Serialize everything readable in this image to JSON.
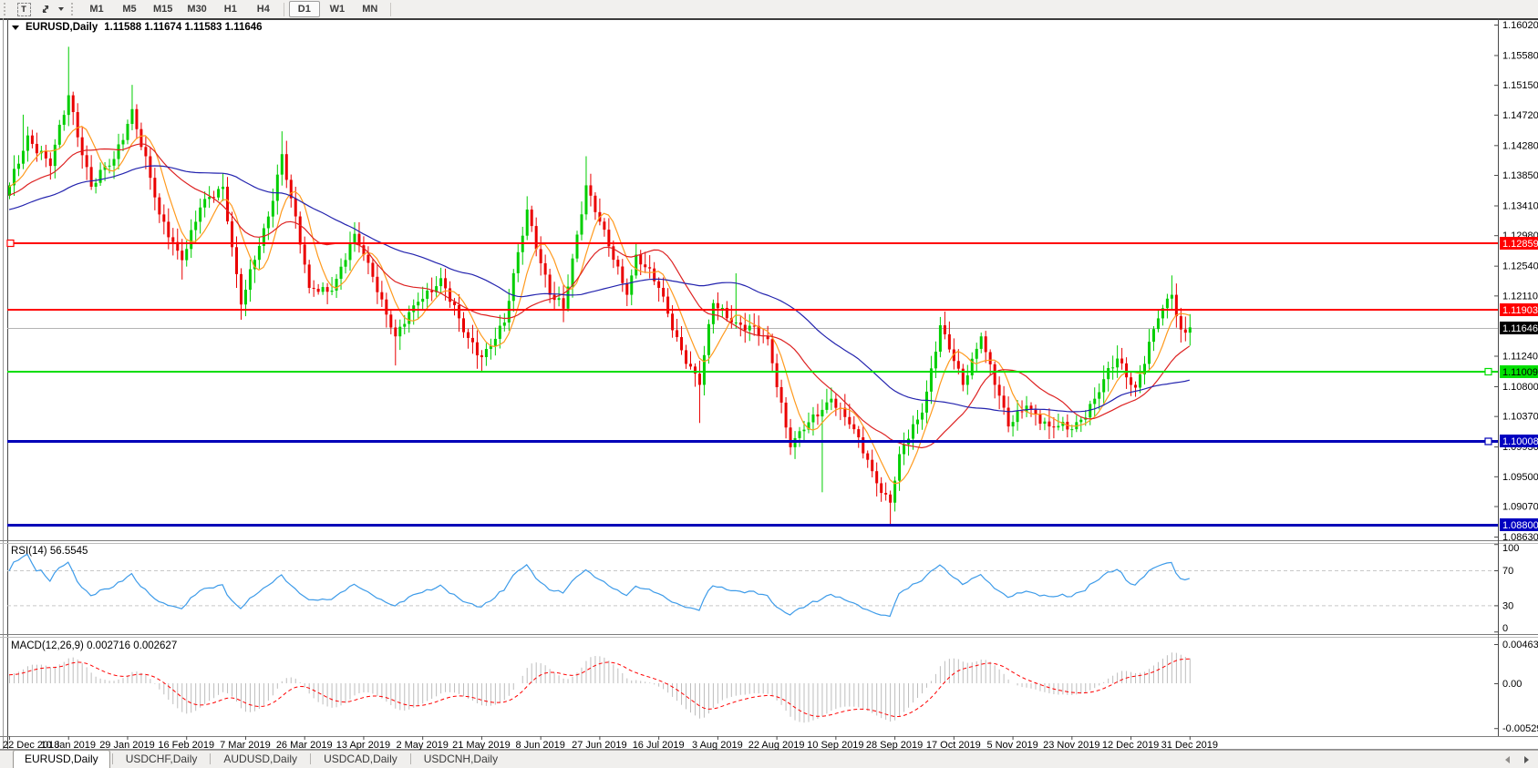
{
  "toolbar": {
    "text_tool_label": "T",
    "timeframes": [
      "M1",
      "M5",
      "M15",
      "M30",
      "H1",
      "H4",
      "D1",
      "W1",
      "MN"
    ],
    "active_timeframe": "D1"
  },
  "chart": {
    "title_symbol": "EURUSD,Daily",
    "title_ohlc": "1.11588 1.11674 1.11583 1.11646",
    "y_ticks": [
      "1.16020",
      "1.15580",
      "1.15150",
      "1.14720",
      "1.14280",
      "1.13850",
      "1.13410",
      "1.12980",
      "1.12540",
      "1.12110",
      "1.11240",
      "1.10800",
      "1.10370",
      "1.09930",
      "1.09500",
      "1.09070",
      "1.08630"
    ],
    "current_price": {
      "label": "1.11646",
      "price": 1.11646
    },
    "hlines": [
      {
        "price": 1.12859,
        "label": "1.12859",
        "color": "#ff0000",
        "width": 2,
        "handle": "left",
        "label_bg": "#ff0000",
        "label_fg": "#ffffff"
      },
      {
        "price": 1.11903,
        "label": "1.11903",
        "color": "#ff0000",
        "width": 2,
        "handle": null,
        "label_bg": "#ff0000",
        "label_fg": "#ffffff"
      },
      {
        "price": 1.11009,
        "label": "1.11009",
        "color": "#00dd00",
        "width": 2,
        "handle": "right",
        "label_bg": "#00e000",
        "label_fg": "#000000"
      },
      {
        "price": 1.10008,
        "label": "1.10008",
        "color": "#0000b8",
        "width": 3,
        "handle": "right",
        "label_bg": "#0000c0",
        "label_fg": "#ffffff"
      },
      {
        "price": 1.088,
        "label": "1.08800",
        "color": "#0000b8",
        "width": 3,
        "handle": null,
        "label_bg": "#0000c0",
        "label_fg": "#ffffff"
      }
    ],
    "colors": {
      "bull": "#00ce00",
      "bear": "#ea0000",
      "ma_fast": "#ff9a1e",
      "ma_medium": "#dd2222",
      "ma_slow": "#2323ae",
      "rsi_line": "#3d9be9",
      "macd_hist": "#bdbdbd",
      "macd_signal": "#ff0000",
      "current_price_line": "#b4b4b4",
      "axis_text": "#000000"
    }
  },
  "chart_data": {
    "type": "candlestick",
    "symbol": "EURUSD",
    "timeframe": "Daily",
    "bar_count": 261,
    "y_range": [
      1.0863,
      1.1602
    ],
    "x_date_labels": [
      "22 Dec 2018",
      "10 Jan 2019",
      "29 Jan 2019",
      "16 Feb 2019",
      "7 Mar 2019",
      "26 Mar 2019",
      "13 Apr 2019",
      "2 May 2019",
      "21 May 2019",
      "8 Jun 2019",
      "27 Jun 2019",
      "16 Jul 2019",
      "3 Aug 2019",
      "22 Aug 2019",
      "10 Sep 2019",
      "28 Sep 2019",
      "17 Oct 2019",
      "5 Nov 2019",
      "23 Nov 2019",
      "12 Dec 2019",
      "31 Dec 2019"
    ],
    "bars_per_label": 13,
    "close_anchors": [
      [
        0,
        1.137
      ],
      [
        4,
        1.1442
      ],
      [
        9,
        1.1398
      ],
      [
        13,
        1.15
      ],
      [
        18,
        1.1368
      ],
      [
        23,
        1.1408
      ],
      [
        27,
        1.148
      ],
      [
        33,
        1.1328
      ],
      [
        38,
        1.1262
      ],
      [
        42,
        1.1338
      ],
      [
        47,
        1.1368
      ],
      [
        51,
        1.1198
      ],
      [
        57,
        1.1325
      ],
      [
        60,
        1.1415
      ],
      [
        66,
        1.1222
      ],
      [
        71,
        1.1218
      ],
      [
        76,
        1.13
      ],
      [
        80,
        1.1238
      ],
      [
        85,
        1.1152
      ],
      [
        90,
        1.1202
      ],
      [
        95,
        1.1236
      ],
      [
        100,
        1.1158
      ],
      [
        104,
        1.1122
      ],
      [
        109,
        1.1172
      ],
      [
        114,
        1.1335
      ],
      [
        119,
        1.1212
      ],
      [
        122,
        1.1192
      ],
      [
        127,
        1.137
      ],
      [
        132,
        1.1282
      ],
      [
        136,
        1.1212
      ],
      [
        138,
        1.127
      ],
      [
        143,
        1.1222
      ],
      [
        148,
        1.1132
      ],
      [
        152,
        1.1082
      ],
      [
        155,
        1.12
      ],
      [
        160,
        1.1172
      ],
      [
        167,
        1.1148
      ],
      [
        172,
        1.0992
      ],
      [
        176,
        1.1028
      ],
      [
        181,
        1.1062
      ],
      [
        186,
        1.1018
      ],
      [
        191,
        1.094
      ],
      [
        194,
        1.0912
      ],
      [
        196,
        1.0982
      ],
      [
        201,
        1.1042
      ],
      [
        205,
        1.1168
      ],
      [
        210,
        1.1082
      ],
      [
        214,
        1.1152
      ],
      [
        220,
        1.1022
      ],
      [
        224,
        1.1052
      ],
      [
        229,
        1.1022
      ],
      [
        234,
        1.1018
      ],
      [
        239,
        1.1062
      ],
      [
        244,
        1.112
      ],
      [
        248,
        1.1078
      ],
      [
        253,
        1.1178
      ],
      [
        256,
        1.1212
      ],
      [
        258,
        1.1162
      ],
      [
        260,
        1.1165
      ]
    ],
    "wick_extremes": [
      {
        "bar": 3,
        "high": 1.1472
      },
      {
        "bar": 13,
        "high": 1.157
      },
      {
        "bar": 27,
        "high": 1.1515
      },
      {
        "bar": 38,
        "low": 1.1234
      },
      {
        "bar": 51,
        "low": 1.1176
      },
      {
        "bar": 60,
        "high": 1.1448
      },
      {
        "bar": 85,
        "low": 1.111
      },
      {
        "bar": 104,
        "low": 1.1107
      },
      {
        "bar": 122,
        "low": 1.1181
      },
      {
        "bar": 127,
        "high": 1.1412
      },
      {
        "bar": 152,
        "low": 1.1027
      },
      {
        "bar": 160,
        "high": 1.1243
      },
      {
        "bar": 167,
        "high": 1.1153
      },
      {
        "bar": 179,
        "low": 1.0927
      },
      {
        "bar": 194,
        "low": 1.0879
      },
      {
        "bar": 205,
        "high": 1.118
      },
      {
        "bar": 256,
        "high": 1.124
      }
    ],
    "moving_averages": [
      {
        "name": "fast",
        "period": 7,
        "color": "#ff9a1e"
      },
      {
        "name": "medium",
        "period": 20,
        "color": "#dd2222"
      },
      {
        "name": "slow",
        "period": 50,
        "color": "#2323ae"
      }
    ],
    "horizontal_levels": [
      1.12859,
      1.11903,
      1.11009,
      1.10008,
      1.088
    ]
  },
  "rsi": {
    "name": "RSI(14)",
    "value": "56.5545",
    "period": 14,
    "ticks": [
      "100",
      "70",
      "30",
      "0"
    ],
    "dashed_levels": [
      70,
      30
    ]
  },
  "macd": {
    "name": "MACD(12,26,9)",
    "values": "0.002716 0.002627",
    "fast": 12,
    "slow": 26,
    "signal": 9,
    "ticks": [
      "0.00463",
      "0.00",
      "-0.005299"
    ]
  },
  "tabs": {
    "items": [
      "EURUSD,Daily",
      "USDCHF,Daily",
      "AUDUSD,Daily",
      "USDCAD,Daily",
      "USDCNH,Daily"
    ],
    "active": "EURUSD,Daily"
  }
}
